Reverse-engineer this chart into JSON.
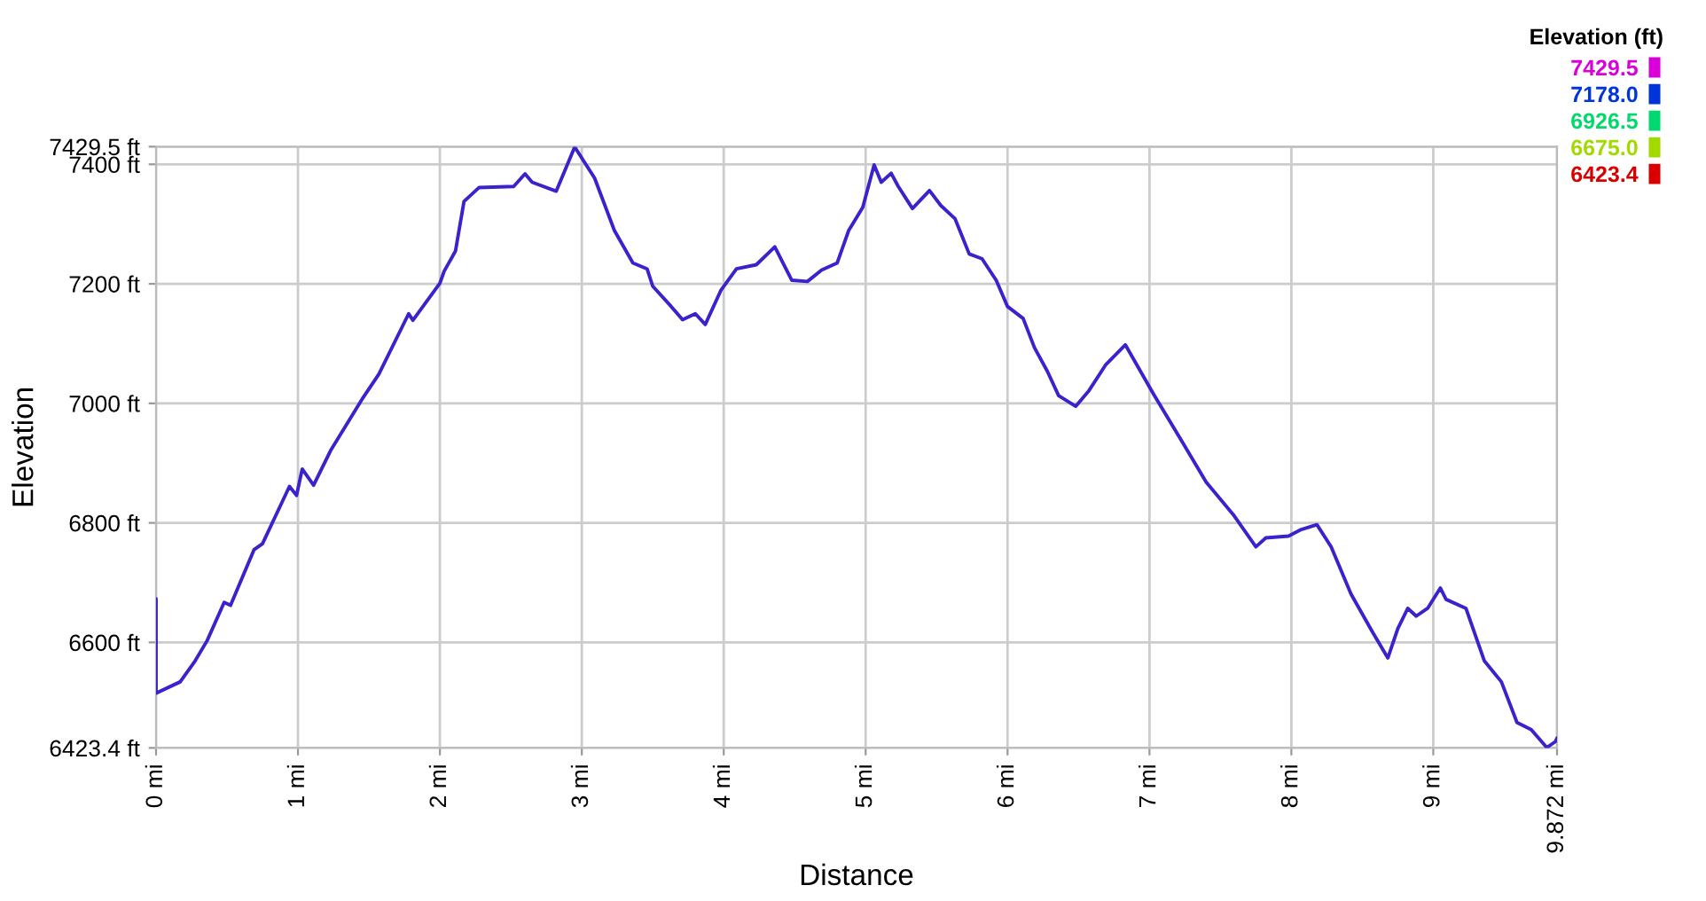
{
  "chart_data": {
    "type": "line",
    "xlabel": "Distance",
    "ylabel": "Elevation",
    "clabel": "Elevation (ft)",
    "xlim": [
      0,
      9.872
    ],
    "ylim": [
      6423.4,
      7429.5
    ],
    "xticks": [
      {
        "value": 0,
        "label": "0 mi"
      },
      {
        "value": 1,
        "label": "1 mi"
      },
      {
        "value": 2,
        "label": "2 mi"
      },
      {
        "value": 3,
        "label": "3 mi"
      },
      {
        "value": 4,
        "label": "4 mi"
      },
      {
        "value": 5,
        "label": "5 mi"
      },
      {
        "value": 6,
        "label": "6 mi"
      },
      {
        "value": 7,
        "label": "7 mi"
      },
      {
        "value": 8,
        "label": "8 mi"
      },
      {
        "value": 9,
        "label": "9 mi"
      },
      {
        "value": 9.872,
        "label": "9.872 mi"
      }
    ],
    "yticks": [
      {
        "value": 6423.4,
        "label": "6423.4 ft"
      },
      {
        "value": 6600,
        "label": "6600 ft"
      },
      {
        "value": 6800,
        "label": "6800 ft"
      },
      {
        "value": 7000,
        "label": "7000 ft"
      },
      {
        "value": 7200,
        "label": "7200 ft"
      },
      {
        "value": 7400,
        "label": "7400 ft"
      },
      {
        "value": 7429.5,
        "label": "7429.5 ft"
      }
    ],
    "cticks": [
      {
        "value": 7429.5,
        "label": "7429.5"
      },
      {
        "value": 7178.0,
        "label": "7178.0"
      },
      {
        "value": 6926.5,
        "label": "6926.5"
      },
      {
        "value": 6675.0,
        "label": "6675.0"
      },
      {
        "value": 6423.4,
        "label": "6423.4"
      }
    ],
    "grid": true,
    "series": [
      {
        "color": "#3a22cc",
        "x": [
          0,
          0,
          0.17,
          0.275,
          0.36,
          0.48,
          0.525,
          0.69,
          0.75,
          0.94,
          0.99,
          1.03,
          1.11,
          1.23,
          1.46,
          1.57,
          1.78,
          1.81,
          2.0,
          2.03,
          2.11,
          2.17,
          2.275,
          2.52,
          2.6,
          2.65,
          2.82,
          2.95,
          3.09,
          3.23,
          3.36,
          3.46,
          3.5,
          3.63,
          3.71,
          3.8,
          3.87,
          3.98,
          4.09,
          4.23,
          4.36,
          4.48,
          4.59,
          4.69,
          4.8,
          4.88,
          4.98,
          5.06,
          5.11,
          5.18,
          5.23,
          5.33,
          5.45,
          5.53,
          5.63,
          5.73,
          5.82,
          5.92,
          6.0,
          6.11,
          6.19,
          6.28,
          6.36,
          6.48,
          6.57,
          6.69,
          6.83,
          7.03,
          7.23,
          7.4,
          7.59,
          7.75,
          7.82,
          7.98,
          8.07,
          8.18,
          8.28,
          8.42,
          8.57,
          8.68,
          8.75,
          8.82,
          8.88,
          8.96,
          9.05,
          9.09,
          9.23,
          9.36,
          9.48,
          9.59,
          9.69,
          9.8,
          9.86,
          9.872
        ],
        "values": [
          6673,
          6515,
          6534,
          6569,
          6603,
          6667,
          6662,
          6755,
          6765,
          6861,
          6846,
          6890,
          6863,
          6921,
          7010,
          7049,
          7150,
          7139,
          7201,
          7221,
          7255,
          7338,
          7361,
          7363,
          7384,
          7370,
          7355,
          7429,
          7377,
          7289,
          7235,
          7225,
          7196,
          7162,
          7140,
          7150,
          7132,
          7189,
          7225,
          7232,
          7262,
          7206,
          7204,
          7223,
          7235,
          7289,
          7328,
          7399,
          7370,
          7385,
          7363,
          7326,
          7356,
          7331,
          7309,
          7250,
          7242,
          7206,
          7162,
          7142,
          7093,
          7054,
          7013,
          6995,
          7020,
          7064,
          7098,
          7015,
          6936,
          6868,
          6814,
          6760,
          6775,
          6778,
          6789,
          6797,
          6760,
          6681,
          6618,
          6574,
          6623,
          6657,
          6644,
          6657,
          6691,
          6672,
          6657,
          6569,
          6534,
          6466,
          6454,
          6424,
          6434,
          6440
        ]
      }
    ]
  }
}
